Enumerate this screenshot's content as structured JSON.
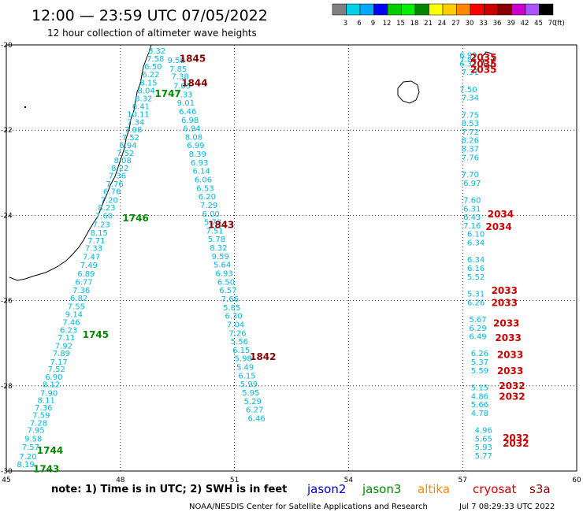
{
  "header": {
    "title": "12:00 — 23:59 UTC 07/05/2022",
    "subtitle": "12 hour collection of altimeter wave heights"
  },
  "colorbar": {
    "labels": [
      "3",
      "6",
      "9",
      "12",
      "15",
      "18",
      "21",
      "24",
      "27",
      "30",
      "33",
      "36",
      "39",
      "42",
      "45",
      "70"
    ],
    "unit": "(ft)",
    "colors": [
      "#808080",
      "#00d0e8",
      "#00a8ff",
      "#0000ff",
      "#00cc00",
      "#00ee00",
      "#008800",
      "#ffff00",
      "#ffcc00",
      "#ff8800",
      "#ff0000",
      "#cc0000",
      "#880000",
      "#cc00cc",
      "#aa55ff",
      "#000000"
    ]
  },
  "footer": {
    "note": "note: 1) Time is in UTC; 2) SWH is in feet",
    "credit": "NOAA/NESDIS Center for Satellite Applications and Research",
    "timestamp": "Jul  7 08:29:33 UTC 2022",
    "satellites": [
      {
        "label": "jason2",
        "color": "#0000cc"
      },
      {
        "label": "jason3",
        "color": "#008800"
      },
      {
        "label": "altika",
        "color": "#ff8800"
      },
      {
        "label": "cryosat",
        "color": "#cc0000"
      },
      {
        "label": "s3a",
        "color": "#880000"
      }
    ]
  },
  "chart_data": {
    "type": "scatter",
    "x_ticks": [
      "45",
      "48",
      "51",
      "54",
      "57",
      "60"
    ],
    "y_ticks": [
      "-20",
      "-22",
      "-24",
      "-26",
      "-28",
      "-30"
    ],
    "xlim": [
      45,
      60
    ],
    "ylim": [
      -30,
      -20
    ],
    "grid": true,
    "series": [
      {
        "color": "#00b8e0",
        "points": [
          [
            45.51,
            -29.85,
            "8.19"
          ],
          [
            45.57,
            -29.67,
            "7.20"
          ],
          [
            45.64,
            -29.45,
            "7.57"
          ],
          [
            45.71,
            -29.25,
            "9.58"
          ],
          [
            45.78,
            -29.05,
            "7.95"
          ],
          [
            45.85,
            -28.88,
            "7.28"
          ],
          [
            45.92,
            -28.7,
            "7.59"
          ],
          [
            45.98,
            -28.52,
            "7.36"
          ],
          [
            46.05,
            -28.35,
            "8.11"
          ],
          [
            46.12,
            -28.18,
            "7.90"
          ],
          [
            46.18,
            -27.98,
            "8.12"
          ],
          [
            46.25,
            -27.8,
            "6.90"
          ],
          [
            46.32,
            -27.62,
            "7.52"
          ],
          [
            46.38,
            -27.45,
            "7.17"
          ],
          [
            46.45,
            -27.25,
            "7.89"
          ],
          [
            46.51,
            -27.07,
            "7.92"
          ],
          [
            46.58,
            -26.88,
            "7.11"
          ],
          [
            46.64,
            -26.7,
            "6.23"
          ],
          [
            46.71,
            -26.52,
            "7.46"
          ],
          [
            46.78,
            -26.33,
            "9.14"
          ],
          [
            46.84,
            -26.15,
            "7.55"
          ],
          [
            46.91,
            -25.95,
            "6.82"
          ],
          [
            46.97,
            -25.77,
            "7.36"
          ],
          [
            47.04,
            -25.57,
            "6.77"
          ],
          [
            47.1,
            -25.38,
            "6.89"
          ],
          [
            47.17,
            -25.18,
            "7.49"
          ],
          [
            47.24,
            -24.98,
            "7.47"
          ],
          [
            47.3,
            -24.78,
            "7.33"
          ],
          [
            47.37,
            -24.6,
            "7.71"
          ],
          [
            47.44,
            -24.42,
            "8.15"
          ],
          [
            47.5,
            -24.22,
            "7.23"
          ],
          [
            47.57,
            -24.02,
            "7.60"
          ],
          [
            47.64,
            -23.83,
            "8.23"
          ],
          [
            47.71,
            -23.65,
            "7.20"
          ],
          [
            47.78,
            -23.45,
            "6.76"
          ],
          [
            47.85,
            -23.27,
            "7.76"
          ],
          [
            47.92,
            -23.08,
            "7.36"
          ],
          [
            47.99,
            -22.9,
            "8.22"
          ],
          [
            48.06,
            -22.72,
            "8.08"
          ],
          [
            48.13,
            -22.55,
            "7.52"
          ],
          [
            48.2,
            -22.37,
            "6.94"
          ],
          [
            48.27,
            -22.18,
            "7.52"
          ],
          [
            48.34,
            -22.0,
            "7.98"
          ],
          [
            48.4,
            -21.82,
            "7.34"
          ],
          [
            48.47,
            -21.64,
            "10.11"
          ],
          [
            48.54,
            -21.45,
            "6.41"
          ],
          [
            48.61,
            -21.27,
            "8.32"
          ],
          [
            48.68,
            -21.08,
            "8.04"
          ],
          [
            48.74,
            -20.9,
            "8.15"
          ],
          [
            48.8,
            -20.7,
            "6.22"
          ],
          [
            48.86,
            -20.52,
            "6.50"
          ],
          [
            48.92,
            -20.33,
            "7.58"
          ],
          [
            48.96,
            -20.15,
            "8.32"
          ],
          [
            49.47,
            -20.37,
            "9.58"
          ],
          [
            49.52,
            -20.57,
            "7.85"
          ],
          [
            49.57,
            -20.75,
            "7.38"
          ],
          [
            49.62,
            -20.97,
            "7.05"
          ],
          [
            49.67,
            -21.17,
            "7.33"
          ],
          [
            49.72,
            -21.37,
            "9.01"
          ],
          [
            49.77,
            -21.57,
            "6.46"
          ],
          [
            49.83,
            -21.77,
            "6.98"
          ],
          [
            49.88,
            -21.97,
            "6.94"
          ],
          [
            49.93,
            -22.17,
            "8.08"
          ],
          [
            49.98,
            -22.37,
            "6.99"
          ],
          [
            50.03,
            -22.57,
            "8.39"
          ],
          [
            50.08,
            -22.77,
            "6.93"
          ],
          [
            50.13,
            -22.97,
            "6.14"
          ],
          [
            50.18,
            -23.17,
            "6.06"
          ],
          [
            50.23,
            -23.37,
            "6.53"
          ],
          [
            50.28,
            -23.57,
            "6.20"
          ],
          [
            50.33,
            -23.77,
            "7.29"
          ],
          [
            50.38,
            -23.97,
            "6.00"
          ],
          [
            50.43,
            -24.17,
            "5.73"
          ],
          [
            50.48,
            -24.37,
            "7.51"
          ],
          [
            50.53,
            -24.57,
            "5.78"
          ],
          [
            50.58,
            -24.77,
            "8.32"
          ],
          [
            50.63,
            -24.97,
            "9.59"
          ],
          [
            50.68,
            -25.17,
            "5.64"
          ],
          [
            50.73,
            -25.37,
            "6.93"
          ],
          [
            50.78,
            -25.57,
            "6.50"
          ],
          [
            50.83,
            -25.77,
            "6.57"
          ],
          [
            50.88,
            -25.97,
            "7.66"
          ],
          [
            50.93,
            -26.17,
            "5.85"
          ],
          [
            50.98,
            -26.37,
            "6.30"
          ],
          [
            51.03,
            -26.57,
            "7.04"
          ],
          [
            51.08,
            -26.77,
            "7.26"
          ],
          [
            51.13,
            -26.97,
            "5.56"
          ],
          [
            51.18,
            -27.17,
            "6.15"
          ],
          [
            51.23,
            -27.37,
            "5.98"
          ],
          [
            51.28,
            -27.57,
            "5.49"
          ],
          [
            51.33,
            -27.77,
            "6.15"
          ],
          [
            51.38,
            -27.97,
            "5.99"
          ],
          [
            51.43,
            -28.17,
            "5.95"
          ],
          [
            51.48,
            -28.37,
            "5.29"
          ],
          [
            51.53,
            -28.57,
            "6.27"
          ],
          [
            51.58,
            -28.77,
            "6.46"
          ],
          [
            57.15,
            -20.25,
            "6.99"
          ],
          [
            57.15,
            -20.35,
            "7.81"
          ],
          [
            57.15,
            -20.45,
            "6.37"
          ],
          [
            57.2,
            -20.65,
            "7.31"
          ],
          [
            57.15,
            -21.05,
            "7.50"
          ],
          [
            57.2,
            -21.25,
            "7.34"
          ],
          [
            57.2,
            -21.65,
            "7.75"
          ],
          [
            57.2,
            -21.85,
            "8.53"
          ],
          [
            57.2,
            -22.05,
            "7.72"
          ],
          [
            57.2,
            -22.25,
            "8.26"
          ],
          [
            57.2,
            -22.45,
            "8.37"
          ],
          [
            57.2,
            -22.65,
            "7.76"
          ],
          [
            57.2,
            -23.05,
            "7.70"
          ],
          [
            57.25,
            -23.25,
            "6.97"
          ],
          [
            57.25,
            -23.65,
            "7.60"
          ],
          [
            57.25,
            -23.85,
            "6.31"
          ],
          [
            57.25,
            -24.05,
            "6.43"
          ],
          [
            57.25,
            -24.25,
            "7.16"
          ],
          [
            57.35,
            -24.45,
            "6.10"
          ],
          [
            57.35,
            -24.65,
            "6.34"
          ],
          [
            57.35,
            -25.05,
            "6.34"
          ],
          [
            57.35,
            -25.25,
            "6.16"
          ],
          [
            57.35,
            -25.45,
            "5.52"
          ],
          [
            57.35,
            -25.85,
            "5.31"
          ],
          [
            57.35,
            -26.05,
            "6.26"
          ],
          [
            57.4,
            -26.45,
            "5.67"
          ],
          [
            57.4,
            -26.65,
            "6.29"
          ],
          [
            57.4,
            -26.85,
            "6.49"
          ],
          [
            57.45,
            -27.25,
            "6.26"
          ],
          [
            57.45,
            -27.45,
            "5.37"
          ],
          [
            57.45,
            -27.65,
            "5.59"
          ],
          [
            57.45,
            -28.05,
            "5.15"
          ],
          [
            57.45,
            -28.25,
            "4.86"
          ],
          [
            57.45,
            -28.45,
            "5.66"
          ],
          [
            57.45,
            -28.65,
            "4.78"
          ],
          [
            57.55,
            -29.05,
            "4.96"
          ],
          [
            57.55,
            -29.25,
            "5.65"
          ],
          [
            57.55,
            -29.45,
            "5.93"
          ],
          [
            57.55,
            -29.65,
            "5.77"
          ]
        ]
      },
      {
        "color": "#0000cc",
        "points": []
      }
    ]
  },
  "time_labels": [
    {
      "text": "1845",
      "color": "#880000",
      "x": 49.9,
      "y": -20.32
    },
    {
      "text": "1844",
      "color": "#880000",
      "x": 49.95,
      "y": -20.9
    },
    {
      "text": "1843",
      "color": "#880000",
      "x": 50.65,
      "y": -24.22
    },
    {
      "text": "1842",
      "color": "#880000",
      "x": 51.75,
      "y": -27.32
    },
    {
      "text": "1747",
      "color": "#008800",
      "x": 49.25,
      "y": -21.15
    },
    {
      "text": "1746",
      "color": "#008800",
      "x": 48.4,
      "y": -24.07
    },
    {
      "text": "1745",
      "color": "#008800",
      "x": 47.35,
      "y": -26.8
    },
    {
      "text": "1744",
      "color": "#008800",
      "x": 46.15,
      "y": -29.52
    },
    {
      "text": "1743",
      "color": "#008800",
      "x": 46.05,
      "y": -29.95
    },
    {
      "text": "2035",
      "color": "#cc0000",
      "x": 57.55,
      "y": -20.3
    },
    {
      "text": "2035",
      "color": "#cc0000",
      "x": 57.55,
      "y": -20.45
    },
    {
      "text": "2035",
      "color": "#cc0000",
      "x": 57.55,
      "y": -20.58
    },
    {
      "text": "2034",
      "color": "#cc0000",
      "x": 58.0,
      "y": -23.97
    },
    {
      "text": "2034",
      "color": "#cc0000",
      "x": 57.95,
      "y": -24.27
    },
    {
      "text": "2033",
      "color": "#cc0000",
      "x": 58.1,
      "y": -25.77
    },
    {
      "text": "2033",
      "color": "#cc0000",
      "x": 58.1,
      "y": -26.05
    },
    {
      "text": "2033",
      "color": "#cc0000",
      "x": 58.15,
      "y": -26.53
    },
    {
      "text": "2033",
      "color": "#cc0000",
      "x": 58.2,
      "y": -26.88
    },
    {
      "text": "2033",
      "color": "#cc0000",
      "x": 58.25,
      "y": -27.27
    },
    {
      "text": "2033",
      "color": "#cc0000",
      "x": 58.25,
      "y": -27.65
    },
    {
      "text": "2032",
      "color": "#cc0000",
      "x": 58.3,
      "y": -28.0
    },
    {
      "text": "2032",
      "color": "#cc0000",
      "x": 58.3,
      "y": -28.25
    },
    {
      "text": "2032",
      "color": "#cc0000",
      "x": 58.4,
      "y": -29.22
    },
    {
      "text": "2032",
      "color": "#cc0000",
      "x": 58.4,
      "y": -29.35
    }
  ]
}
